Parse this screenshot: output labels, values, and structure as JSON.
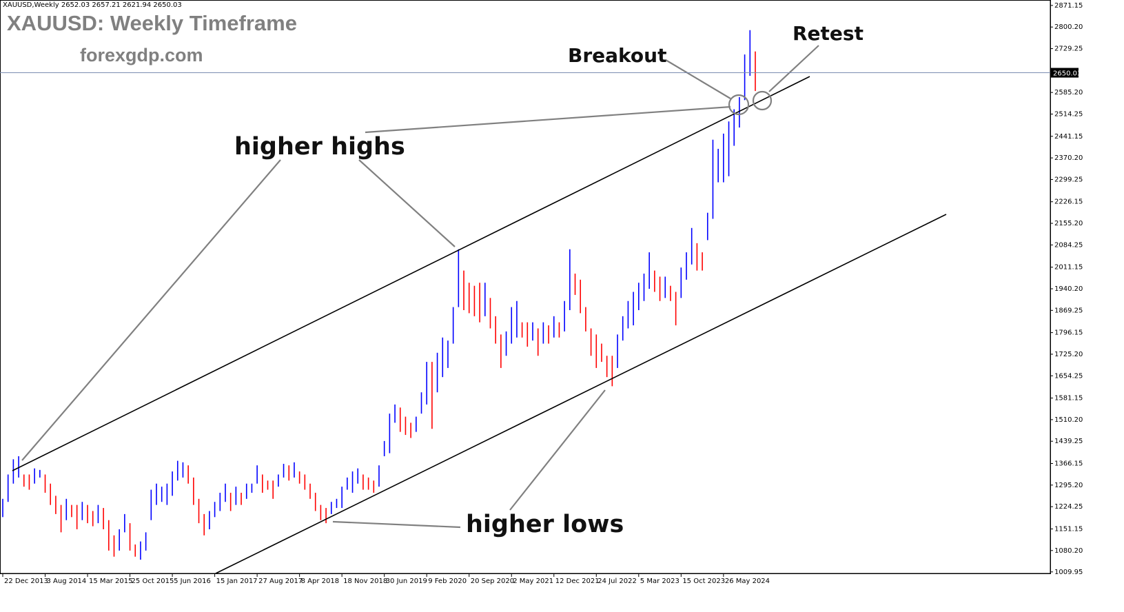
{
  "chart_data": {
    "type": "range_bar",
    "header": "XAUUSD,Weekly  2652.03 2657.21 2621.94 2650.03",
    "title": "XAUUSD: Weekly Timeframe",
    "subtitle": "forexgdp.com",
    "annotations": [
      "higher highs",
      "higher lows",
      "Breakout",
      "Retest"
    ],
    "colors": {
      "up": "#0000ff",
      "down": "#ff0000",
      "trendline": "#000000",
      "pointer": "#808080",
      "price_line": "#7a8bb0"
    },
    "current_price": 2650.03,
    "ylim": [
      1005,
      2889
    ],
    "yticks": [
      2871.15,
      {
        "value": 2800.2,
        "label": "2800.20"
      },
      2729.25,
      {
        "value": 2585.2,
        "label": "2585.20"
      },
      2514.25,
      2441.15,
      {
        "value": 2370.2,
        "label": "2370.20"
      },
      2299.25,
      2226.15,
      {
        "value": 2155.2,
        "label": "2155.20"
      },
      2084.25,
      2011.15,
      {
        "value": 1940.2,
        "label": "1940.20"
      },
      1869.25,
      1796.15,
      {
        "value": 1725.2,
        "label": "1725.20"
      },
      1654.25,
      1581.15,
      {
        "value": 1510.2,
        "label": "1510.20"
      },
      1439.25,
      1366.15,
      {
        "value": 1295.2,
        "label": "1295.20"
      },
      1224.25,
      1151.15,
      {
        "value": 1080.2,
        "label": "1080.20"
      },
      1009.95
    ],
    "xticks": [
      {
        "value": 0,
        "label": "22 Dec 2013"
      },
      {
        "value": 8,
        "label": "3 Aug 2014"
      },
      {
        "value": 16,
        "label": "15 Mar 2015"
      },
      {
        "value": 24,
        "label": "25 Oct 2015"
      },
      {
        "value": 32,
        "label": "5 Jun 2016"
      },
      {
        "value": 40,
        "label": "15 Jan 2017"
      },
      {
        "value": 48,
        "label": "27 Aug 2017"
      },
      {
        "value": 56,
        "label": "8 Apr 2018"
      },
      {
        "value": 64,
        "label": "18 Nov 2018"
      },
      {
        "value": 72,
        "label": "30 Jun 2019"
      },
      {
        "value": 80,
        "label": "9 Feb 2020"
      },
      {
        "value": 88,
        "label": "20 Sep 2020"
      },
      {
        "value": 96,
        "label": "2 May 2021"
      },
      {
        "value": 104,
        "label": "12 Dec 2021"
      },
      {
        "value": 112,
        "label": "24 Jul 2022"
      },
      {
        "value": 120,
        "label": "5 Mar 2023"
      },
      {
        "value": 128,
        "label": "15 Oct 2023"
      },
      {
        "value": 136,
        "label": "26 May 2024"
      }
    ],
    "high": [
      1250,
      1330,
      1380,
      1390,
      1330,
      1330,
      1350,
      1345,
      1330,
      1300,
      1260,
      1230,
      1250,
      1230,
      1230,
      1240,
      1230,
      1210,
      1230,
      1220,
      1180,
      1130,
      1150,
      1200,
      1170,
      1100,
      1110,
      1140,
      1280,
      1300,
      1290,
      1300,
      1340,
      1375,
      1370,
      1360,
      1320,
      1250,
      1200,
      1210,
      1240,
      1270,
      1300,
      1270,
      1290,
      1270,
      1300,
      1300,
      1360,
      1330,
      1310,
      1310,
      1330,
      1365,
      1360,
      1370,
      1340,
      1330,
      1300,
      1270,
      1230,
      1220,
      1240,
      1250,
      1290,
      1320,
      1340,
      1350,
      1330,
      1320,
      1310,
      1360,
      1440,
      1530,
      1560,
      1550,
      1520,
      1500,
      1520,
      1600,
      1700,
      1700,
      1730,
      1780,
      1770,
      1880,
      2070,
      2000,
      1960,
      1950,
      1960,
      1960,
      1910,
      1850,
      1790,
      1800,
      1880,
      1900,
      1830,
      1830,
      1830,
      1810,
      1830,
      1820,
      1850,
      1830,
      1900,
      2070,
      1990,
      1970,
      1880,
      1810,
      1790,
      1760,
      1720,
      1720,
      1790,
      1850,
      1900,
      1930,
      1960,
      1990,
      2060,
      2000,
      1980,
      1980,
      1950,
      1930,
      2010,
      2060,
      2140,
      2090,
      2060,
      2190,
      2430,
      2400,
      2450,
      2490,
      2530,
      2570,
      2710,
      2790,
      2720
    ],
    "low": [
      1190,
      1240,
      1300,
      1320,
      1290,
      1280,
      1300,
      1320,
      1270,
      1230,
      1200,
      1140,
      1180,
      1190,
      1150,
      1180,
      1170,
      1160,
      1170,
      1150,
      1080,
      1060,
      1080,
      1140,
      1080,
      1060,
      1050,
      1080,
      1180,
      1230,
      1240,
      1230,
      1260,
      1310,
      1320,
      1300,
      1230,
      1170,
      1130,
      1150,
      1190,
      1210,
      1240,
      1210,
      1230,
      1230,
      1250,
      1270,
      1300,
      1270,
      1280,
      1250,
      1290,
      1320,
      1310,
      1320,
      1300,
      1280,
      1250,
      1210,
      1180,
      1170,
      1200,
      1220,
      1220,
      1280,
      1270,
      1300,
      1280,
      1280,
      1270,
      1290,
      1390,
      1400,
      1500,
      1470,
      1460,
      1450,
      1470,
      1530,
      1560,
      1480,
      1600,
      1650,
      1680,
      1760,
      1880,
      1870,
      1860,
      1850,
      1830,
      1850,
      1810,
      1760,
      1680,
      1720,
      1760,
      1780,
      1780,
      1750,
      1770,
      1720,
      1760,
      1760,
      1780,
      1780,
      1800,
      1870,
      1920,
      1860,
      1800,
      1720,
      1680,
      1700,
      1650,
      1620,
      1680,
      1770,
      1810,
      1820,
      1870,
      1900,
      1940,
      1930,
      1900,
      1910,
      1900,
      1820,
      1910,
      1970,
      2020,
      2000,
      2000,
      2100,
      2170,
      2290,
      2290,
      2310,
      2410,
      2470,
      2560,
      2640,
      2590
    ]
  }
}
